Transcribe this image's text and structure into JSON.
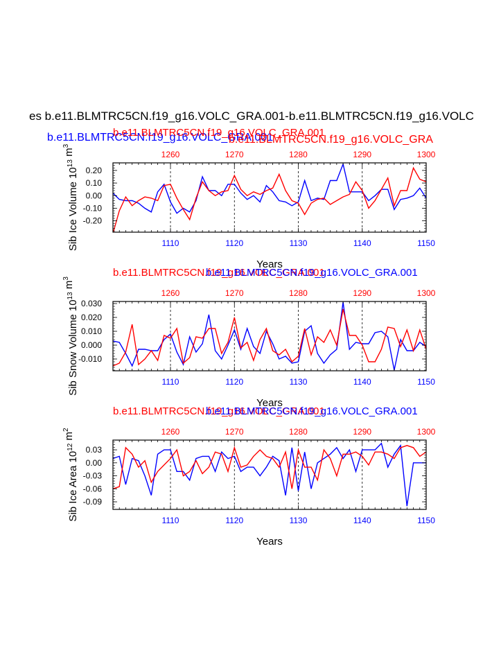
{
  "page_title": "es b.e11.BLMTRC5CN.f19_g16.VOLC_GRA.001-b.e11.BLMTRC5CN.f19_g16.VOLC",
  "colors": {
    "run_a": "#0000ff",
    "run_b": "#ff0000",
    "axis": "#000000",
    "grid": "#000000"
  },
  "chart_data": [
    {
      "type": "line",
      "title_red": "b.e11.BLMTRC5CN.f19_g16.VOLC_GRA.001",
      "title_blue": "b.e11.BLMTRC5CN.f19_g16.VOLC_GRA.001",
      "title_red_overlap": "b.e11.BLMTRC5CN.f19_g16.VOLC_GRA",
      "title_blue_row": "b.e11.BLMTRC5CN.f19_g16.VOLC_GRA.001",
      "ylabel": "Sib Ice Volume 10^13 m^3",
      "xlabel": "Years",
      "bottom_axis": {
        "label_color": "blue",
        "range": [
          1101,
          1150
        ],
        "ticks": [
          "1110",
          "1120",
          "1130",
          "1140",
          "1150"
        ]
      },
      "top_axis": {
        "label_color": "red",
        "range": [
          1251,
          1300
        ],
        "ticks": [
          "1260",
          "1270",
          "1280",
          "1290",
          "1300"
        ]
      },
      "ylim": [
        -0.29,
        0.26
      ],
      "yticks": [
        "0.20",
        "0.10",
        "0.00",
        "-0.10",
        "-0.20"
      ],
      "ytick_values": [
        0.2,
        0.1,
        0.0,
        -0.1,
        -0.2
      ],
      "series": [
        {
          "name": "b.e11.BLMTRC5CN.f19_g16.VOLC_GRA.001",
          "axis": "bottom",
          "color": "blue",
          "values": [
            0.02,
            -0.03,
            -0.04,
            -0.04,
            -0.06,
            -0.1,
            -0.13,
            0.03,
            0.09,
            -0.05,
            -0.14,
            -0.1,
            -0.13,
            -0.04,
            0.15,
            0.04,
            0.04,
            0.0,
            0.09,
            0.09,
            0.02,
            -0.03,
            0.0,
            -0.05,
            0.08,
            0.03,
            -0.04,
            -0.05,
            -0.08,
            -0.05,
            0.12,
            -0.04,
            -0.02,
            -0.03,
            0.12,
            0.12,
            0.25,
            0.03,
            0.03,
            0.03,
            -0.04,
            0.0,
            0.05,
            0.05,
            -0.11,
            -0.03,
            -0.02,
            0.0,
            0.06,
            -0.02
          ]
        },
        {
          "name": "b.e11.BLMTRC5CN.f19_g16.VOLC_GRA.001 (top)",
          "axis": "top",
          "color": "red",
          "values": [
            -0.3,
            -0.12,
            -0.01,
            -0.08,
            -0.04,
            -0.01,
            -0.02,
            -0.04,
            0.08,
            0.09,
            -0.02,
            -0.11,
            -0.19,
            -0.02,
            0.11,
            0.04,
            0.0,
            0.03,
            0.04,
            0.16,
            0.05,
            0.0,
            0.03,
            0.01,
            0.04,
            0.06,
            0.17,
            0.04,
            -0.04,
            -0.06,
            -0.15,
            -0.06,
            -0.03,
            -0.02,
            -0.07,
            -0.04,
            -0.01,
            0.01,
            0.11,
            0.04,
            -0.1,
            -0.04,
            0.05,
            0.14,
            -0.08,
            0.04,
            0.04,
            0.22,
            0.13,
            0.11
          ]
        }
      ]
    },
    {
      "type": "line",
      "title_red": "b.e11.BLMTRC5CN.f19_g16.VOLC_GRA.001",
      "title_blue": "b.e11.BLMTRC5CN.f19_g16.VOLC_GRA.001",
      "ylabel": "Sib Snow Volume 10^13 m^3",
      "xlabel": "Years",
      "bottom_axis": {
        "label_color": "blue",
        "range": [
          1101,
          1150
        ],
        "ticks": [
          "1110",
          "1120",
          "1130",
          "1140",
          "1150"
        ]
      },
      "top_axis": {
        "label_color": "red",
        "range": [
          1251,
          1300
        ],
        "ticks": [
          "1260",
          "1270",
          "1280",
          "1290",
          "1300"
        ]
      },
      "ylim": [
        -0.0185,
        0.0315
      ],
      "yticks": [
        "0.030",
        "0.020",
        "0.010",
        "0.000",
        "-0.010"
      ],
      "ytick_values": [
        0.03,
        0.02,
        0.01,
        0.0,
        -0.01
      ],
      "series": [
        {
          "name": "b.e11.BLMTRC5CN.f19_g16.VOLC_GRA.001",
          "axis": "bottom",
          "color": "blue",
          "values": [
            0.003,
            0.002,
            -0.006,
            -0.015,
            -0.003,
            -0.003,
            -0.004,
            -0.004,
            0.004,
            0.008,
            -0.005,
            -0.014,
            0.006,
            -0.005,
            0.001,
            0.022,
            -0.004,
            -0.01,
            0.0,
            0.011,
            -0.003,
            0.012,
            -0.001,
            -0.006,
            0.01,
            0.001,
            -0.01,
            -0.008,
            -0.013,
            -0.012,
            0.01,
            0.014,
            -0.006,
            -0.013,
            -0.007,
            -0.003,
            0.031,
            -0.003,
            0.002,
            0.001,
            0.001,
            0.009,
            0.01,
            0.006,
            -0.018,
            0.004,
            -0.004,
            -0.004,
            0.002,
            -0.001
          ]
        },
        {
          "name": "b.e11.BLMTRC5CN.f19_g16.VOLC_GRA.001 (top)",
          "axis": "top",
          "color": "red",
          "values": [
            -0.015,
            -0.013,
            -0.005,
            0.015,
            -0.014,
            -0.01,
            -0.004,
            -0.011,
            0.007,
            0.005,
            0.012,
            -0.013,
            -0.009,
            0.006,
            0.005,
            0.012,
            0.012,
            -0.006,
            0.002,
            0.02,
            -0.002,
            0.002,
            -0.011,
            0.004,
            0.012,
            -0.004,
            -0.007,
            -0.003,
            -0.012,
            -0.008,
            0.012,
            -0.007,
            0.006,
            0.002,
            0.011,
            0.0,
            0.026,
            0.007,
            0.007,
            0.0,
            -0.012,
            -0.012,
            -0.003,
            0.013,
            0.012,
            -0.001,
            0.011,
            -0.004,
            0.011,
            -0.003
          ]
        }
      ]
    },
    {
      "type": "line",
      "title_red": "b.e11.BLMTRC5CN.f19_g16.VOLC_GRA.001",
      "title_blue": "b.e11.BLMTRC5CN.f19_g16.VOLC_GRA.001",
      "ylabel": "Sib Ice Area 10^12 m^2",
      "xlabel": "Years",
      "bottom_axis": {
        "label_color": "blue",
        "range": [
          1101,
          1150
        ],
        "ticks": [
          "1110",
          "1120",
          "1130",
          "1140",
          "1150"
        ]
      },
      "top_axis": {
        "label_color": "red",
        "range": [
          1251,
          1300
        ],
        "ticks": [
          "1260",
          "1270",
          "1280",
          "1290",
          "1300"
        ]
      },
      "ylim": [
        -0.1075,
        0.0525
      ],
      "yticks": [
        "0.03",
        "0.00",
        "-0.03",
        "-0.06",
        "-0.09"
      ],
      "ytick_values": [
        0.03,
        0.0,
        -0.03,
        -0.06,
        -0.09
      ],
      "series": [
        {
          "name": "b.e11.BLMTRC5CN.f19_g16.VOLC_GRA.001",
          "axis": "bottom",
          "color": "blue",
          "values": [
            0.01,
            0.015,
            -0.05,
            0.01,
            0.005,
            -0.03,
            -0.075,
            0.02,
            0.03,
            0.03,
            -0.02,
            -0.02,
            -0.04,
            0.01,
            0.015,
            0.015,
            -0.02,
            0.025,
            0.01,
            0.015,
            -0.02,
            -0.01,
            -0.01,
            -0.03,
            -0.01,
            0.015,
            0.005,
            -0.075,
            0.035,
            -0.065,
            0.025,
            -0.06,
            0.0,
            0.01,
            0.02,
            0.035,
            0.01,
            0.03,
            -0.02,
            0.03,
            0.03,
            0.03,
            0.045,
            -0.01,
            0.02,
            0.04,
            -0.1,
            0.0,
            0.0,
            0.0
          ]
        },
        {
          "name": "b.e11.BLMTRC5CN.f19_g16.VOLC_GRA.001 (top)",
          "axis": "top",
          "color": "red",
          "values": [
            -0.06,
            -0.055,
            0.035,
            0.02,
            -0.01,
            0.005,
            -0.045,
            -0.02,
            -0.005,
            0.01,
            0.03,
            -0.03,
            -0.02,
            0.005,
            -0.025,
            -0.01,
            0.025,
            0.02,
            -0.02,
            0.035,
            -0.01,
            -0.005,
            0.015,
            0.03,
            0.015,
            0.01,
            -0.01,
            0.025,
            -0.06,
            0.03,
            -0.01,
            -0.01,
            -0.04,
            0.03,
            0.01,
            -0.03,
            0.02,
            0.02,
            0.025,
            0.015,
            -0.005,
            0.025,
            0.025,
            0.02,
            0.01,
            0.035,
            0.04,
            0.035,
            0.015,
            0.025
          ]
        }
      ]
    }
  ]
}
